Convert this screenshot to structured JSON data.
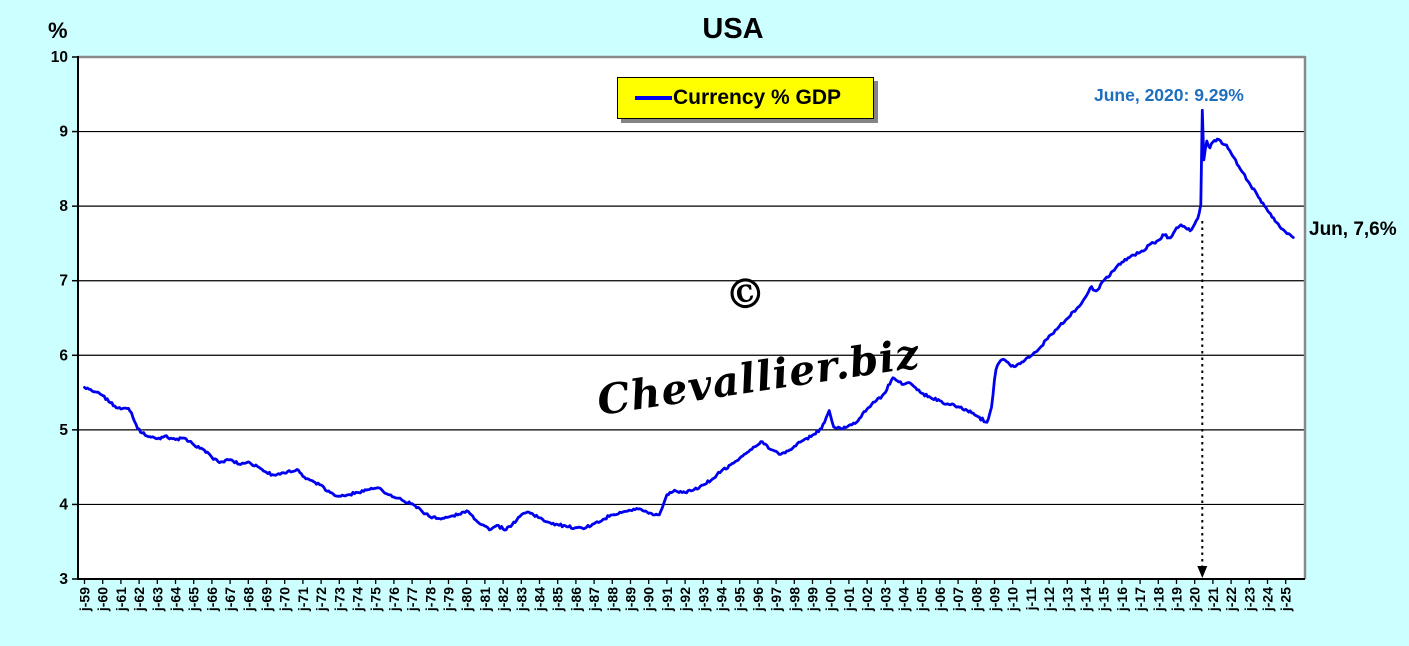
{
  "chart_data": {
    "type": "line",
    "title": "USA",
    "y_axis_unit": "%",
    "ylim": [
      3,
      10
    ],
    "y_ticks": [
      10,
      9,
      8,
      7,
      6,
      5,
      4,
      3
    ],
    "grid": "horizontal",
    "x_start_year": 1959,
    "x_tick_labels": [
      "j-59",
      "j-60",
      "j-61",
      "j-62",
      "j-63",
      "j-64",
      "j-65",
      "j-66",
      "j-67",
      "j-68",
      "j-69",
      "j-70",
      "j-71",
      "j-72",
      "j-73",
      "j-74",
      "j-75",
      "j-76",
      "j-77",
      "j-78",
      "j-79",
      "j-80",
      "j-81",
      "j-82",
      "j-83",
      "j-84",
      "j-85",
      "j-86",
      "j-87",
      "j-88",
      "j-89",
      "j-90",
      "j-91",
      "j-92",
      "j-93",
      "j-94",
      "j-95",
      "j-96",
      "j-97",
      "j-98",
      "j-99",
      "j-00",
      "j-01",
      "j-02",
      "j-03",
      "j-04",
      "j-05",
      "j-06",
      "j-07",
      "j-08",
      "j-09",
      "j-10",
      "j-11",
      "j-12",
      "j-13",
      "j-14",
      "j-15",
      "j-16",
      "j-17",
      "j-18",
      "j-19",
      "j-20",
      "j-21",
      "j-22",
      "j-23",
      "j-24",
      "j-25"
    ],
    "legend": {
      "position": "top-center",
      "entries": [
        {
          "label": "Currency % GDP",
          "color": "#0000EE"
        }
      ]
    },
    "series": [
      {
        "name": "Currency % GDP",
        "color": "#0000EE",
        "points": [
          [
            1959.0,
            5.57
          ],
          [
            1959.5,
            5.51
          ],
          [
            1960.0,
            5.46
          ],
          [
            1960.4,
            5.37
          ],
          [
            1960.7,
            5.31
          ],
          [
            1961.0,
            5.28
          ],
          [
            1961.4,
            5.3
          ],
          [
            1961.6,
            5.22
          ],
          [
            1961.9,
            5.02
          ],
          [
            1962.4,
            4.92
          ],
          [
            1963.0,
            4.88
          ],
          [
            1963.4,
            4.92
          ],
          [
            1964.0,
            4.87
          ],
          [
            1964.5,
            4.89
          ],
          [
            1965.0,
            4.8
          ],
          [
            1965.5,
            4.74
          ],
          [
            1966.0,
            4.63
          ],
          [
            1966.4,
            4.56
          ],
          [
            1967.0,
            4.6
          ],
          [
            1967.5,
            4.54
          ],
          [
            1968.0,
            4.57
          ],
          [
            1968.5,
            4.51
          ],
          [
            1969.0,
            4.43
          ],
          [
            1969.5,
            4.39
          ],
          [
            1970.0,
            4.42
          ],
          [
            1970.7,
            4.47
          ],
          [
            1971.1,
            4.36
          ],
          [
            1971.5,
            4.32
          ],
          [
            1972.0,
            4.26
          ],
          [
            1972.5,
            4.16
          ],
          [
            1973.0,
            4.11
          ],
          [
            1973.5,
            4.13
          ],
          [
            1974.0,
            4.16
          ],
          [
            1974.6,
            4.2
          ],
          [
            1975.2,
            4.22
          ],
          [
            1975.6,
            4.14
          ],
          [
            1976.0,
            4.1
          ],
          [
            1976.5,
            4.05
          ],
          [
            1977.0,
            4.01
          ],
          [
            1977.5,
            3.92
          ],
          [
            1978.0,
            3.83
          ],
          [
            1978.5,
            3.81
          ],
          [
            1979.0,
            3.83
          ],
          [
            1979.6,
            3.87
          ],
          [
            1980.1,
            3.91
          ],
          [
            1980.5,
            3.79
          ],
          [
            1981.0,
            3.71
          ],
          [
            1981.3,
            3.66
          ],
          [
            1981.7,
            3.72
          ],
          [
            1982.1,
            3.65
          ],
          [
            1982.5,
            3.73
          ],
          [
            1983.0,
            3.86
          ],
          [
            1983.4,
            3.9
          ],
          [
            1984.0,
            3.82
          ],
          [
            1984.5,
            3.76
          ],
          [
            1985.0,
            3.73
          ],
          [
            1985.5,
            3.7
          ],
          [
            1986.0,
            3.69
          ],
          [
            1986.5,
            3.68
          ],
          [
            1987.0,
            3.74
          ],
          [
            1987.5,
            3.8
          ],
          [
            1988.0,
            3.86
          ],
          [
            1988.5,
            3.89
          ],
          [
            1989.0,
            3.92
          ],
          [
            1989.4,
            3.94
          ],
          [
            1990.0,
            3.88
          ],
          [
            1990.6,
            3.86
          ],
          [
            1991.0,
            4.13
          ],
          [
            1991.4,
            4.19
          ],
          [
            1992.0,
            4.16
          ],
          [
            1992.5,
            4.2
          ],
          [
            1993.0,
            4.26
          ],
          [
            1993.5,
            4.34
          ],
          [
            1994.0,
            4.45
          ],
          [
            1994.5,
            4.53
          ],
          [
            1995.0,
            4.62
          ],
          [
            1995.5,
            4.71
          ],
          [
            1996.0,
            4.8
          ],
          [
            1996.25,
            4.84
          ],
          [
            1996.7,
            4.74
          ],
          [
            1997.2,
            4.67
          ],
          [
            1997.7,
            4.72
          ],
          [
            1998.0,
            4.78
          ],
          [
            1998.5,
            4.86
          ],
          [
            1999.0,
            4.93
          ],
          [
            1999.5,
            5.02
          ],
          [
            1999.92,
            5.26
          ],
          [
            2000.15,
            5.04
          ],
          [
            2000.6,
            5.01
          ],
          [
            2001.0,
            5.06
          ],
          [
            2001.5,
            5.12
          ],
          [
            2002.0,
            5.28
          ],
          [
            2002.5,
            5.39
          ],
          [
            2003.0,
            5.5
          ],
          [
            2003.4,
            5.7
          ],
          [
            2003.7,
            5.65
          ],
          [
            2004.0,
            5.61
          ],
          [
            2004.3,
            5.64
          ],
          [
            2005.0,
            5.49
          ],
          [
            2005.5,
            5.43
          ],
          [
            2006.0,
            5.39
          ],
          [
            2006.5,
            5.34
          ],
          [
            2007.0,
            5.31
          ],
          [
            2007.5,
            5.26
          ],
          [
            2008.0,
            5.19
          ],
          [
            2008.6,
            5.1
          ],
          [
            2008.85,
            5.32
          ],
          [
            2009.05,
            5.8
          ],
          [
            2009.3,
            5.93
          ],
          [
            2009.55,
            5.94
          ],
          [
            2009.85,
            5.87
          ],
          [
            2010.15,
            5.85
          ],
          [
            2010.5,
            5.91
          ],
          [
            2011.0,
            5.99
          ],
          [
            2011.5,
            6.1
          ],
          [
            2012.0,
            6.26
          ],
          [
            2012.5,
            6.37
          ],
          [
            2013.0,
            6.49
          ],
          [
            2013.5,
            6.62
          ],
          [
            2014.0,
            6.78
          ],
          [
            2014.3,
            6.92
          ],
          [
            2014.6,
            6.86
          ],
          [
            2015.0,
            7.0
          ],
          [
            2015.5,
            7.13
          ],
          [
            2016.0,
            7.25
          ],
          [
            2016.5,
            7.33
          ],
          [
            2017.0,
            7.38
          ],
          [
            2017.5,
            7.48
          ],
          [
            2018.0,
            7.54
          ],
          [
            2018.3,
            7.62
          ],
          [
            2018.65,
            7.57
          ],
          [
            2019.0,
            7.71
          ],
          [
            2019.25,
            7.75
          ],
          [
            2019.55,
            7.69
          ],
          [
            2019.8,
            7.67
          ],
          [
            2020.0,
            7.76
          ],
          [
            2020.2,
            7.85
          ],
          [
            2020.33,
            7.97
          ],
          [
            2020.417,
            9.29
          ],
          [
            2020.5,
            8.62
          ],
          [
            2020.67,
            8.88
          ],
          [
            2020.83,
            8.78
          ],
          [
            2021.0,
            8.86
          ],
          [
            2021.25,
            8.9
          ],
          [
            2021.5,
            8.84
          ],
          [
            2021.75,
            8.82
          ],
          [
            2022.0,
            8.71
          ],
          [
            2022.5,
            8.5
          ],
          [
            2023.0,
            8.31
          ],
          [
            2023.5,
            8.12
          ],
          [
            2024.0,
            7.94
          ],
          [
            2024.5,
            7.78
          ],
          [
            2025.0,
            7.65
          ],
          [
            2025.417,
            7.58
          ]
        ]
      }
    ],
    "annotations": {
      "peak": {
        "text": "June, 2020: 9.29%",
        "x": 2020.417,
        "y": 9.29,
        "color": "#1F6FBF"
      },
      "last": {
        "text": "Jun, 7,6%",
        "x": 2025.417,
        "y": 7.58,
        "color": "#000000"
      },
      "watermark": {
        "text": "© Chevallier.biz"
      }
    },
    "colors": {
      "background": "#CCFFFF",
      "plot_background": "#FFFFFF",
      "line": "#0000EE",
      "gridline": "#000000",
      "legend_fill": "#FFFF00"
    }
  }
}
